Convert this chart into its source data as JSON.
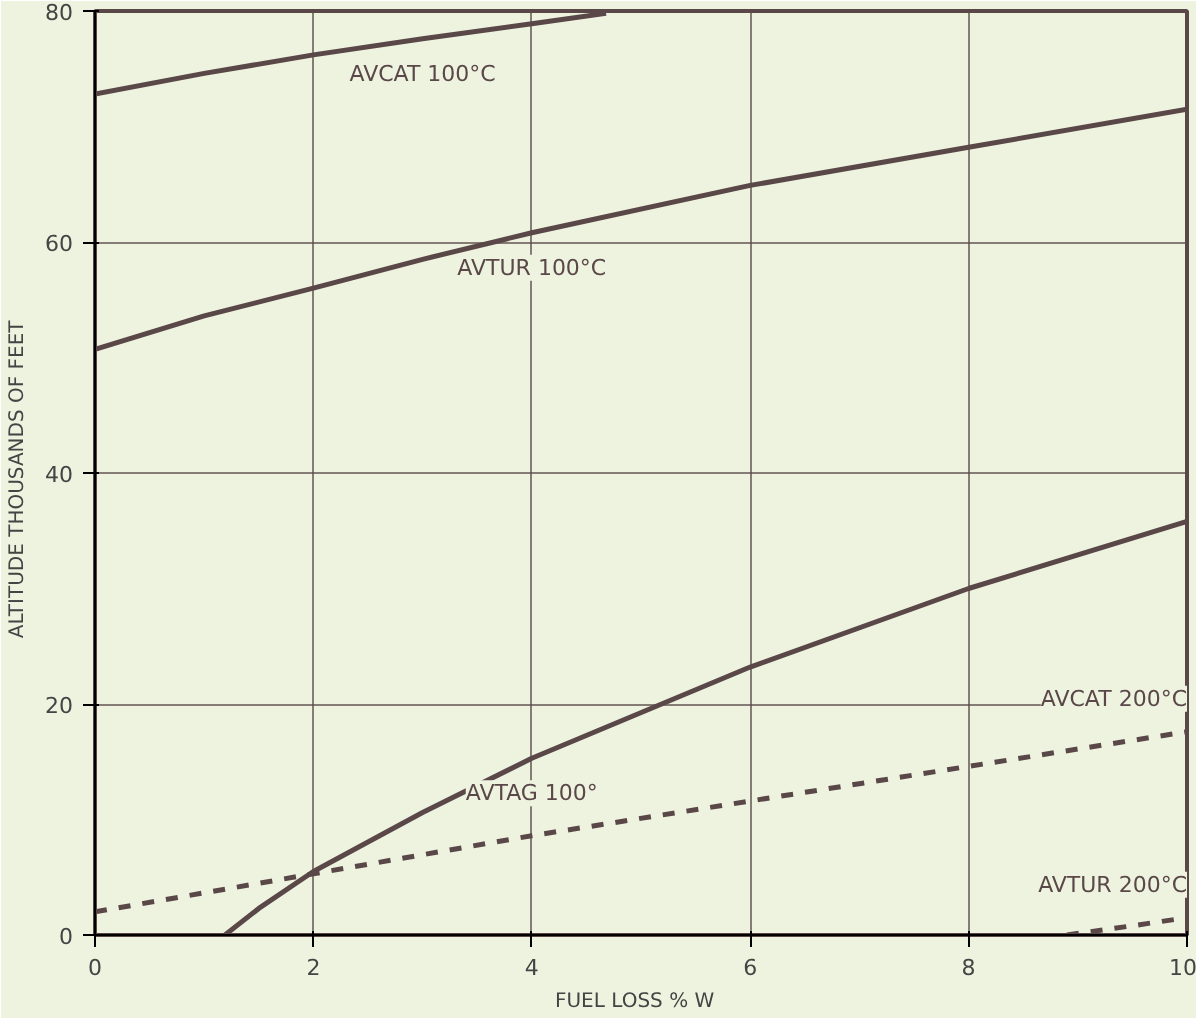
{
  "chart_data": {
    "type": "line",
    "xlabel": "FUEL LOSS   % W",
    "ylabel": "ALTITUDE   THOUSANDS OF FEET",
    "xlim": [
      0,
      10
    ],
    "ylim": [
      0,
      80
    ],
    "xticks": [
      0,
      2,
      4,
      6,
      8,
      10
    ],
    "yticks": [
      0,
      20,
      40,
      60,
      80
    ],
    "grid": true,
    "series": [
      {
        "name": "AVCAT 100°C",
        "color": "#5a4848",
        "x": [
          0,
          1,
          2,
          3,
          4,
          4.68
        ],
        "values": [
          72.8,
          74.6,
          76.2,
          77.6,
          78.9,
          79.8
        ]
      },
      {
        "name": "AVTUR 100°C",
        "color": "#5a4848",
        "x": [
          0,
          1,
          2,
          3,
          4,
          6,
          8,
          10
        ],
        "values": [
          50.7,
          53.6,
          56.0,
          58.5,
          60.8,
          64.9,
          68.2,
          71.5
        ]
      },
      {
        "name": "AVTAG 100°",
        "color": "#5a4848",
        "x": [
          1.19,
          1.5,
          2,
          3,
          4,
          6,
          8,
          10
        ],
        "values": [
          0,
          2.3,
          5.5,
          10.6,
          15.3,
          23.2,
          30.0,
          35.8
        ]
      },
      {
        "name": "AVCAT 200°C",
        "color": "#5a4848",
        "line_style": "dashed",
        "x": [
          0,
          2,
          4,
          6,
          8,
          10
        ],
        "values": [
          2.0,
          5.3,
          8.6,
          11.6,
          14.6,
          17.6
        ]
      },
      {
        "name": "AVTUR 200°C",
        "color": "#5a4848",
        "line_style": "dashed",
        "x": [
          8.9,
          9.5,
          10
        ],
        "values": [
          0,
          0.8,
          1.5
        ]
      }
    ]
  }
}
